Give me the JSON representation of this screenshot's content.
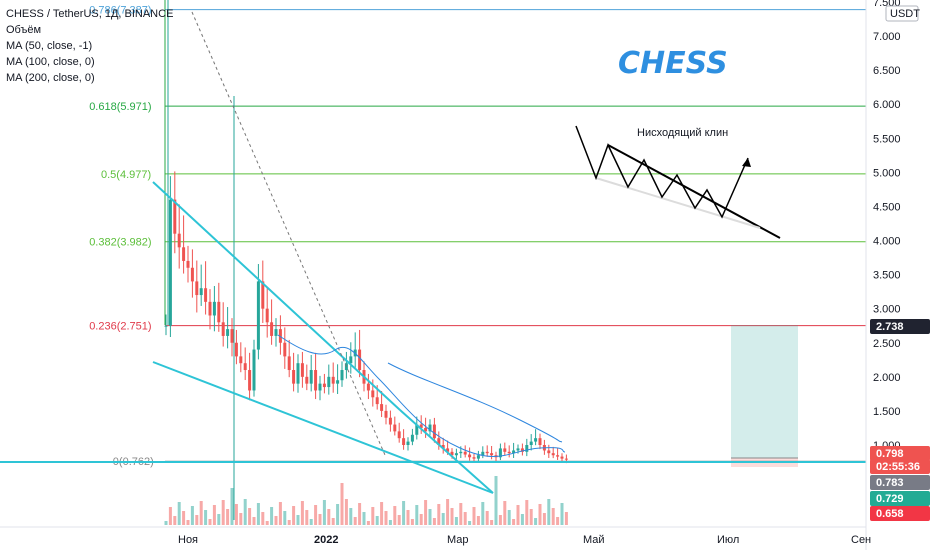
{
  "header": {
    "symbol": "CHESS / TetherUS, 1Д, BINANCE",
    "indicators": [
      "Объём",
      "MA (50, close, -1)",
      "MA (100, close, 0)",
      "MA (200, close, 0)"
    ]
  },
  "annotation": {
    "title": "CHESS",
    "wedge_label": "Нисходящий клин"
  },
  "axis": {
    "currency": "USDT",
    "y_ticks": [
      "7.500",
      "7.000",
      "6.500",
      "6.000",
      "5.500",
      "5.000",
      "4.500",
      "4.000",
      "3.500",
      "3.000",
      "2.500",
      "2.000",
      "1.500",
      "1.000"
    ],
    "x_ticks": [
      "Ноя",
      "2022",
      "Мар",
      "Май",
      "Июл",
      "Сен"
    ]
  },
  "price_tags": [
    {
      "label": "2.738",
      "color": "#202330"
    },
    {
      "label": "0.798",
      "color": "#ef5350"
    },
    {
      "label": "02:55:36",
      "color": "#ef5350"
    },
    {
      "label": "0.783",
      "color": "#787b86"
    },
    {
      "label": "0.729",
      "color": "#22ab94"
    },
    {
      "label": "0.658",
      "color": "#f23645"
    }
  ],
  "chart_data": {
    "type": "candlestick",
    "title": "CHESS / TetherUS, 1Д, BINANCE",
    "y_range": [
      0.55,
      7.7
    ],
    "fib_levels": [
      {
        "ratio": "0.786",
        "value": 7.387,
        "label": "0.786(7.387)",
        "color": "#4fa3d9"
      },
      {
        "ratio": "0.618",
        "value": 5.971,
        "label": "0.618(5.971)",
        "color": "#27a844"
      },
      {
        "ratio": "0.5",
        "value": 4.977,
        "label": "0.5(4.977)",
        "color": "#5cbf3a"
      },
      {
        "ratio": "0.382",
        "value": 3.982,
        "label": "0.382(3.982)",
        "color": "#5cbf3a"
      },
      {
        "ratio": "0.236",
        "value": 2.751,
        "label": "0.236(2.751)",
        "color": "#e03a4a"
      },
      {
        "ratio": "0",
        "value": 0.762,
        "label": "0(0.762)",
        "color": "#888888"
      }
    ],
    "closes": [
      2.75,
      4.6,
      4.1,
      3.9,
      3.7,
      3.6,
      3.4,
      3.2,
      3.3,
      3.1,
      2.9,
      3.1,
      2.8,
      2.6,
      2.7,
      2.5,
      2.3,
      2.2,
      2.1,
      1.8,
      2.4,
      3.4,
      3.0,
      2.8,
      2.6,
      2.7,
      2.5,
      2.3,
      2.1,
      1.9,
      2.2,
      2.0,
      1.9,
      2.1,
      1.8,
      1.9,
      1.85,
      2.0,
      1.9,
      1.95,
      2.1,
      2.2,
      2.3,
      2.4,
      2.1,
      1.9,
      1.8,
      1.7,
      1.6,
      1.5,
      1.4,
      1.3,
      1.2,
      1.1,
      1.0,
      1.05,
      1.15,
      1.3,
      1.25,
      1.2,
      1.3,
      1.1,
      1.0,
      0.95,
      0.9,
      0.85,
      0.88,
      0.9,
      0.86,
      0.82,
      0.8,
      0.85,
      0.9,
      0.88,
      0.85,
      0.82,
      0.95,
      0.9,
      0.88,
      0.92,
      0.95,
      0.9,
      1.0,
      1.05,
      1.1,
      1.0,
      0.92,
      0.88,
      0.85,
      0.83,
      0.8,
      0.798
    ],
    "ma_series": [
      {
        "name": "MA (50, close, -1)",
        "color": "#2962ff"
      }
    ],
    "long_position": {
      "entry": 0.762,
      "target": 2.738,
      "stop": 0.658
    }
  }
}
